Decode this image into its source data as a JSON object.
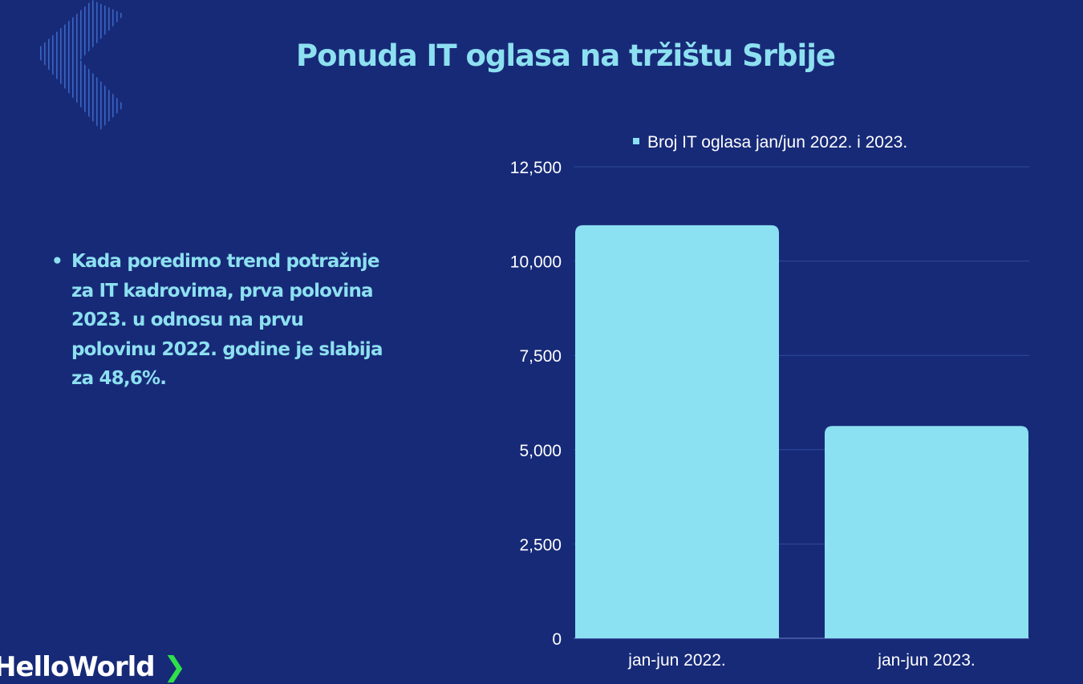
{
  "title": "Ponuda IT oglasa na tržištu Srbije",
  "bullet_text": "Kada poredimo trend potražnje za IT kadrovima, prva polovina 2023. u odnosu na prvu polovinu 2022. godine je slabija za 48,6%.",
  "logo": {
    "text": "HelloWorld",
    "chevron": "❯"
  },
  "colors": {
    "background": "#172a78",
    "bar": "#8be0f1",
    "accent": "#8de0f0",
    "logo_chevron": "#2fe04a"
  },
  "chart_data": {
    "type": "bar",
    "title": "",
    "legend": [
      "Broj IT oglasa jan/jun 2022. i 2023."
    ],
    "legend_position": "top",
    "categories": [
      "jan-jun 2022.",
      "jan-jun 2023."
    ],
    "values": [
      10950,
      5628
    ],
    "ylim": [
      0,
      12500
    ],
    "yticks": [
      0,
      2500,
      5000,
      7500,
      10000,
      12500
    ],
    "ytick_labels": [
      "0",
      "2,500",
      "5,000",
      "7,500",
      "10,000",
      "12,500"
    ],
    "grid": true,
    "xlabel": "",
    "ylabel": ""
  }
}
